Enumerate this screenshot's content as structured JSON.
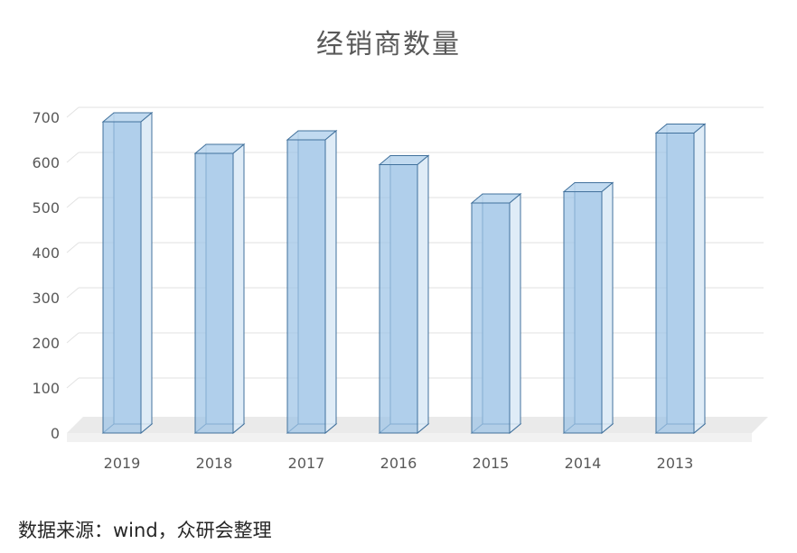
{
  "chart_data": {
    "type": "bar",
    "style": "3d-column",
    "title": "经销商数量",
    "categories": [
      "2019",
      "2018",
      "2017",
      "2016",
      "2015",
      "2014",
      "2013"
    ],
    "values": [
      690,
      620,
      650,
      595,
      510,
      535,
      665
    ],
    "ylim": [
      0,
      700
    ],
    "yticks": [
      0,
      100,
      200,
      300,
      400,
      500,
      600,
      700
    ],
    "grid": true,
    "legend": "none",
    "source_note": "数据来源：wind，众研会整理",
    "colors": {
      "bar_fill": "#9DC3E6",
      "bar_top": "#BDD7EE",
      "bar_side": "#DEEBF7",
      "bar_back": "#E3EEF8",
      "bar_stroke": "#41719C",
      "floor": "#EAEAEA",
      "floor_front": "#F1F1F1",
      "gridline": "#E2E2E2",
      "axis_text": "#595959",
      "title_text": "#595959",
      "note_text": "#262626"
    }
  }
}
